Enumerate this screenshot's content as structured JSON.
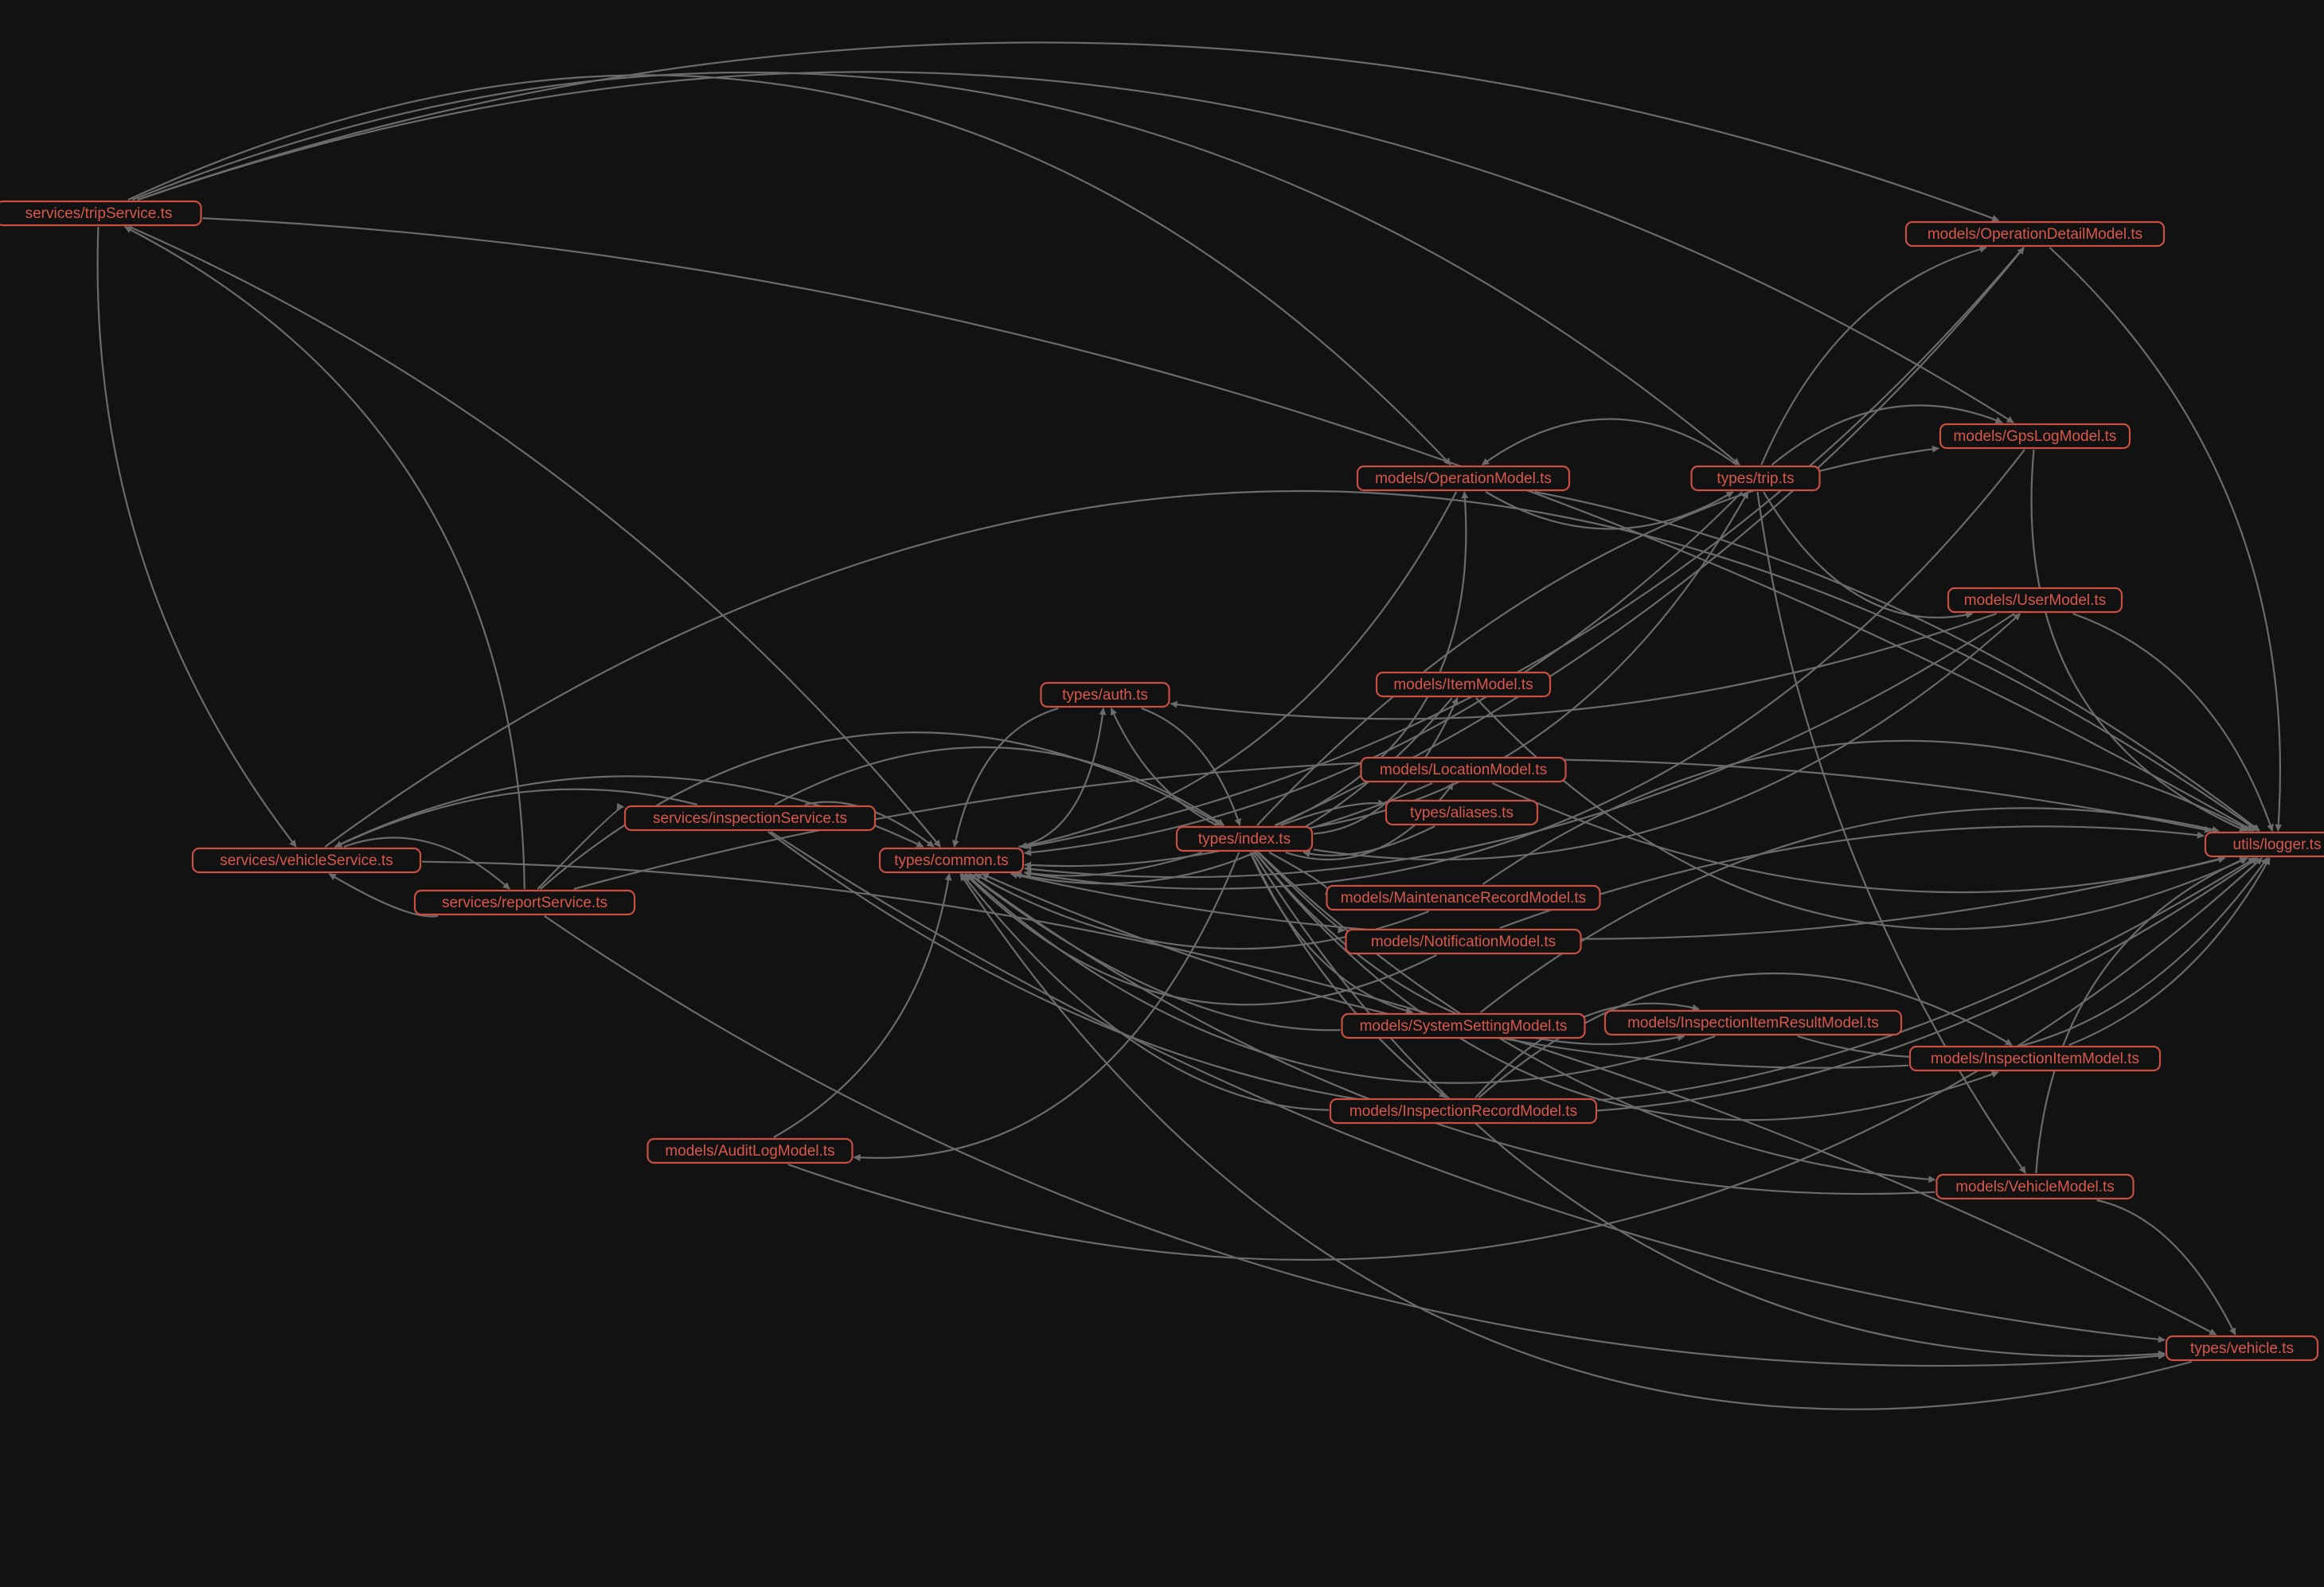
{
  "colors": {
    "background": "#121212",
    "node_border": "#c94f43",
    "node_text": "#d9574b",
    "edge": "#6b6b6b"
  },
  "nodes": [
    {
      "id": "tripService",
      "label": "services/tripService.ts"
    },
    {
      "id": "vehicleService",
      "label": "services/vehicleService.ts"
    },
    {
      "id": "inspectionService",
      "label": "services/inspectionService.ts"
    },
    {
      "id": "reportService",
      "label": "services/reportService.ts"
    },
    {
      "id": "common",
      "label": "types/common.ts"
    },
    {
      "id": "auth",
      "label": "types/auth.ts"
    },
    {
      "id": "index",
      "label": "types/index.ts"
    },
    {
      "id": "aliases",
      "label": "types/aliases.ts"
    },
    {
      "id": "trip",
      "label": "types/trip.ts"
    },
    {
      "id": "vehicle",
      "label": "types/vehicle.ts"
    },
    {
      "id": "logger",
      "label": "utils/logger.ts"
    },
    {
      "id": "auditLog",
      "label": "models/AuditLogModel.ts"
    },
    {
      "id": "operation",
      "label": "models/OperationModel.ts"
    },
    {
      "id": "operationDetail",
      "label": "models/OperationDetailModel.ts"
    },
    {
      "id": "gpsLog",
      "label": "models/GpsLogModel.ts"
    },
    {
      "id": "user",
      "label": "models/UserModel.ts"
    },
    {
      "id": "item",
      "label": "models/ItemModel.ts"
    },
    {
      "id": "location",
      "label": "models/LocationModel.ts"
    },
    {
      "id": "maintenance",
      "label": "models/MaintenanceRecordModel.ts"
    },
    {
      "id": "notification",
      "label": "models/NotificationModel.ts"
    },
    {
      "id": "systemSetting",
      "label": "models/SystemSettingModel.ts"
    },
    {
      "id": "inspectionItemResult",
      "label": "models/InspectionItemResultModel.ts"
    },
    {
      "id": "inspectionItem",
      "label": "models/InspectionItemModel.ts"
    },
    {
      "id": "inspectionRecord",
      "label": "models/InspectionRecordModel.ts"
    },
    {
      "id": "vehicleModel",
      "label": "models/VehicleModel.ts"
    }
  ],
  "edges": [
    [
      "tripService",
      "logger"
    ],
    [
      "tripService",
      "operationDetail"
    ],
    [
      "tripService",
      "gpsLog"
    ],
    [
      "tripService",
      "trip"
    ],
    [
      "tripService",
      "operation"
    ],
    [
      "tripService",
      "common"
    ],
    [
      "tripService",
      "vehicleService"
    ],
    [
      "vehicleService",
      "common"
    ],
    [
      "vehicleService",
      "reportService"
    ],
    [
      "vehicleService",
      "logger"
    ],
    [
      "vehicleService",
      "vehicle"
    ],
    [
      "inspectionService",
      "vehicleService"
    ],
    [
      "inspectionService",
      "common"
    ],
    [
      "inspectionService",
      "index"
    ],
    [
      "inspectionService",
      "logger"
    ],
    [
      "inspectionService",
      "vehicle"
    ],
    [
      "reportService",
      "vehicleService"
    ],
    [
      "reportService",
      "inspectionService"
    ],
    [
      "reportService",
      "tripService"
    ],
    [
      "reportService",
      "index"
    ],
    [
      "reportService",
      "logger"
    ],
    [
      "reportService",
      "vehicle"
    ],
    [
      "auditLog",
      "common"
    ],
    [
      "auditLog",
      "logger"
    ],
    [
      "index",
      "auditLog"
    ],
    [
      "index",
      "common"
    ],
    [
      "index",
      "auth"
    ],
    [
      "auth",
      "index"
    ],
    [
      "auth",
      "common"
    ],
    [
      "common",
      "auth"
    ],
    [
      "index",
      "aliases"
    ],
    [
      "aliases",
      "index"
    ],
    [
      "index",
      "trip"
    ],
    [
      "index",
      "vehicle"
    ],
    [
      "index",
      "operation"
    ],
    [
      "index",
      "operationDetail"
    ],
    [
      "index",
      "gpsLog"
    ],
    [
      "index",
      "user"
    ],
    [
      "index",
      "item"
    ],
    [
      "index",
      "location"
    ],
    [
      "index",
      "maintenance"
    ],
    [
      "index",
      "notification"
    ],
    [
      "index",
      "systemSetting"
    ],
    [
      "index",
      "inspectionItemResult"
    ],
    [
      "index",
      "inspectionItem"
    ],
    [
      "index",
      "inspectionRecord"
    ],
    [
      "index",
      "vehicleModel"
    ],
    [
      "operation",
      "common"
    ],
    [
      "operation",
      "trip"
    ],
    [
      "trip",
      "operation"
    ],
    [
      "operation",
      "logger"
    ],
    [
      "trip",
      "common"
    ],
    [
      "trip",
      "operationDetail"
    ],
    [
      "trip",
      "gpsLog"
    ],
    [
      "trip",
      "user"
    ],
    [
      "trip",
      "vehicleModel"
    ],
    [
      "operationDetail",
      "common"
    ],
    [
      "operationDetail",
      "logger"
    ],
    [
      "gpsLog",
      "common"
    ],
    [
      "gpsLog",
      "logger"
    ],
    [
      "user",
      "auth"
    ],
    [
      "user",
      "common"
    ],
    [
      "user",
      "logger"
    ],
    [
      "item",
      "common"
    ],
    [
      "item",
      "logger"
    ],
    [
      "location",
      "common"
    ],
    [
      "location",
      "logger"
    ],
    [
      "maintenance",
      "common"
    ],
    [
      "maintenance",
      "logger"
    ],
    [
      "notification",
      "common"
    ],
    [
      "notification",
      "logger"
    ],
    [
      "systemSetting",
      "common"
    ],
    [
      "systemSetting",
      "logger"
    ],
    [
      "inspectionItemResult",
      "common"
    ],
    [
      "inspectionItemResult",
      "logger"
    ],
    [
      "inspectionItem",
      "common"
    ],
    [
      "inspectionItem",
      "logger"
    ],
    [
      "inspectionRecord",
      "common"
    ],
    [
      "inspectionRecord",
      "inspectionItemResult"
    ],
    [
      "inspectionRecord",
      "inspectionItem"
    ],
    [
      "inspectionRecord",
      "logger"
    ],
    [
      "vehicleModel",
      "common"
    ],
    [
      "vehicleModel",
      "vehicle"
    ],
    [
      "vehicleModel",
      "logger"
    ],
    [
      "vehicle",
      "common"
    ],
    [
      "logger",
      "common"
    ]
  ]
}
